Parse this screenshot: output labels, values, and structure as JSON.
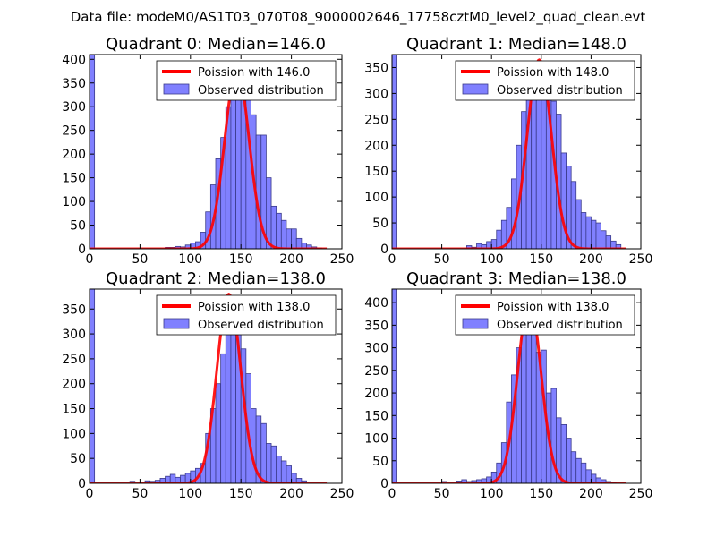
{
  "suptitle": "Data file: modeM0/AS1T03_070T08_9000002646_17758cztM0_level2_quad_clean.evt",
  "colors": {
    "bar_fill": "#8080ff",
    "bar_edge": "#3a3a8a",
    "curve": "#ff0000",
    "axis": "#000000",
    "legend_edge": "#000000"
  },
  "chart_data": [
    {
      "type": "bar",
      "title": "Quadrant 0: Median=146.0",
      "median": 146.0,
      "xlim": [
        0,
        250
      ],
      "ylim": [
        0,
        410
      ],
      "xticks": [
        0,
        50,
        100,
        150,
        200,
        250
      ],
      "yticks": [
        0,
        50,
        100,
        150,
        200,
        250,
        300,
        350,
        400
      ],
      "bin_width": 5,
      "legend": [
        "Poission with 146.0",
        "Observed distribution"
      ],
      "hist": [
        [
          0,
          410
        ],
        [
          75,
          3
        ],
        [
          80,
          3
        ],
        [
          85,
          5
        ],
        [
          90,
          4
        ],
        [
          95,
          8
        ],
        [
          100,
          12
        ],
        [
          105,
          15
        ],
        [
          110,
          35
        ],
        [
          115,
          78
        ],
        [
          120,
          135
        ],
        [
          125,
          190
        ],
        [
          130,
          235
        ],
        [
          135,
          300
        ],
        [
          140,
          350
        ],
        [
          145,
          362
        ],
        [
          150,
          335
        ],
        [
          155,
          315
        ],
        [
          160,
          283
        ],
        [
          165,
          240
        ],
        [
          170,
          240
        ],
        [
          175,
          150
        ],
        [
          180,
          90
        ],
        [
          185,
          75
        ],
        [
          190,
          60
        ],
        [
          195,
          42
        ],
        [
          200,
          42
        ],
        [
          205,
          22
        ],
        [
          210,
          12
        ],
        [
          215,
          8
        ],
        [
          220,
          4
        ],
        [
          225,
          2
        ]
      ],
      "poisson_peak": 380
    },
    {
      "type": "bar",
      "title": "Quadrant 1: Median=148.0",
      "median": 148.0,
      "xlim": [
        0,
        250
      ],
      "ylim": [
        0,
        375
      ],
      "xticks": [
        0,
        50,
        100,
        150,
        200,
        250
      ],
      "yticks": [
        0,
        50,
        100,
        150,
        200,
        250,
        300,
        350
      ],
      "bin_width": 5,
      "legend": [
        "Poission with 148.0",
        "Observed distribution"
      ],
      "hist": [
        [
          0,
          375
        ],
        [
          75,
          6
        ],
        [
          80,
          3
        ],
        [
          85,
          10
        ],
        [
          90,
          8
        ],
        [
          95,
          14
        ],
        [
          100,
          18
        ],
        [
          105,
          36
        ],
        [
          110,
          55
        ],
        [
          115,
          80
        ],
        [
          120,
          135
        ],
        [
          125,
          200
        ],
        [
          130,
          265
        ],
        [
          135,
          305
        ],
        [
          140,
          345
        ],
        [
          145,
          320
        ],
        [
          150,
          300
        ],
        [
          155,
          290
        ],
        [
          160,
          285
        ],
        [
          165,
          260
        ],
        [
          170,
          185
        ],
        [
          175,
          160
        ],
        [
          180,
          130
        ],
        [
          185,
          95
        ],
        [
          190,
          70
        ],
        [
          195,
          62
        ],
        [
          200,
          55
        ],
        [
          205,
          50
        ],
        [
          210,
          35
        ],
        [
          215,
          25
        ],
        [
          220,
          15
        ],
        [
          225,
          8
        ]
      ],
      "poisson_peak": 365
    },
    {
      "type": "bar",
      "title": "Quadrant 2: Median=138.0",
      "median": 138.0,
      "xlim": [
        0,
        250
      ],
      "ylim": [
        0,
        390
      ],
      "xticks": [
        0,
        50,
        100,
        150,
        200,
        250
      ],
      "yticks": [
        0,
        50,
        100,
        150,
        200,
        250,
        300,
        350
      ],
      "bin_width": 5,
      "legend": [
        "Poission with 138.0",
        "Observed distribution"
      ],
      "hist": [
        [
          0,
          390
        ],
        [
          40,
          4
        ],
        [
          55,
          5
        ],
        [
          60,
          4
        ],
        [
          65,
          6
        ],
        [
          70,
          10
        ],
        [
          75,
          14
        ],
        [
          80,
          18
        ],
        [
          85,
          12
        ],
        [
          90,
          16
        ],
        [
          95,
          20
        ],
        [
          100,
          25
        ],
        [
          105,
          30
        ],
        [
          110,
          40
        ],
        [
          115,
          100
        ],
        [
          120,
          150
        ],
        [
          125,
          200
        ],
        [
          130,
          260
        ],
        [
          135,
          320
        ],
        [
          140,
          350
        ],
        [
          145,
          315
        ],
        [
          150,
          270
        ],
        [
          155,
          220
        ],
        [
          160,
          150
        ],
        [
          165,
          135
        ],
        [
          170,
          120
        ],
        [
          175,
          80
        ],
        [
          180,
          75
        ],
        [
          185,
          55
        ],
        [
          190,
          45
        ],
        [
          195,
          35
        ],
        [
          200,
          20
        ],
        [
          205,
          10
        ],
        [
          210,
          5
        ]
      ],
      "poisson_peak": 380
    },
    {
      "type": "bar",
      "title": "Quadrant 3: Median=138.0",
      "median": 138.0,
      "xlim": [
        0,
        250
      ],
      "ylim": [
        0,
        430
      ],
      "xticks": [
        0,
        50,
        100,
        150,
        200,
        250
      ],
      "yticks": [
        0,
        50,
        100,
        150,
        200,
        250,
        300,
        350,
        400
      ],
      "bin_width": 5,
      "legend": [
        "Poission with 138.0",
        "Observed distribution"
      ],
      "hist": [
        [
          0,
          430
        ],
        [
          50,
          4
        ],
        [
          65,
          5
        ],
        [
          70,
          8
        ],
        [
          75,
          4
        ],
        [
          80,
          6
        ],
        [
          85,
          8
        ],
        [
          90,
          10
        ],
        [
          95,
          14
        ],
        [
          100,
          25
        ],
        [
          105,
          45
        ],
        [
          110,
          90
        ],
        [
          115,
          180
        ],
        [
          120,
          240
        ],
        [
          125,
          300
        ],
        [
          130,
          350
        ],
        [
          135,
          345
        ],
        [
          140,
          330
        ],
        [
          145,
          290
        ],
        [
          150,
          295
        ],
        [
          155,
          200
        ],
        [
          160,
          210
        ],
        [
          165,
          145
        ],
        [
          170,
          130
        ],
        [
          175,
          100
        ],
        [
          180,
          70
        ],
        [
          185,
          55
        ],
        [
          190,
          45
        ],
        [
          195,
          30
        ],
        [
          200,
          20
        ],
        [
          205,
          12
        ],
        [
          210,
          8
        ],
        [
          215,
          4
        ],
        [
          220,
          2
        ]
      ],
      "poisson_peak": 405
    }
  ]
}
